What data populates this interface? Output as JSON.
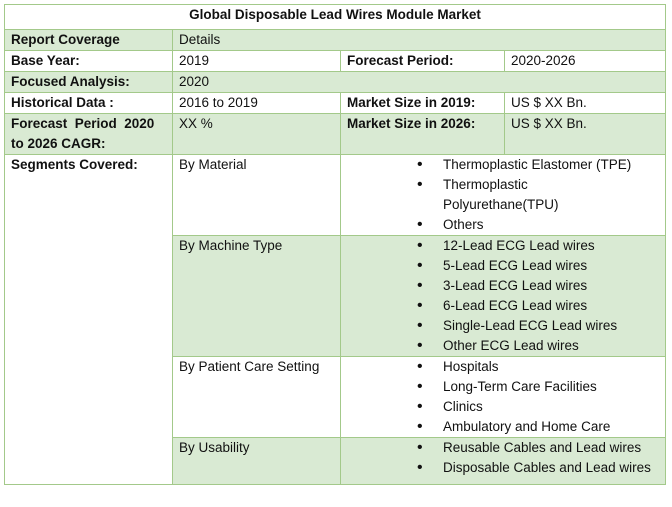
{
  "title": "Global Disposable Lead Wires Module Market",
  "header": {
    "label": "Report Coverage",
    "value": "Details"
  },
  "base_year": {
    "label": "Base Year:",
    "value": "2019"
  },
  "forecast_period": {
    "label": "Forecast Period:",
    "value": "2020-2026"
  },
  "focused_analysis": {
    "label": "Focused Analysis:",
    "value": "2020"
  },
  "historical_data": {
    "label": "Historical Data :",
    "value": "2016 to 2019"
  },
  "market_size_2019": {
    "label": "Market Size in 2019:",
    "value": "US $ XX Bn."
  },
  "cagr": {
    "label_line1": "Forecast  Period  2020",
    "label_line2": "to 2026 CAGR:",
    "value": "XX %"
  },
  "market_size_2026": {
    "label": "Market Size in 2026:",
    "value": "US $ XX Bn."
  },
  "segments": {
    "label": "Segments Covered:",
    "groups": [
      {
        "name": "By Material",
        "items": [
          "Thermoplastic Elastomer (TPE)",
          "Thermoplastic Polyurethane(TPU)",
          "Others"
        ]
      },
      {
        "name": "By Machine Type",
        "items": [
          "12-Lead ECG Lead wires",
          "5-Lead ECG Lead wires",
          "3-Lead ECG Lead wires",
          "6-Lead ECG Lead wires",
          "Single-Lead ECG Lead wires",
          "Other ECG Lead wires"
        ]
      },
      {
        "name": "By Patient Care Setting",
        "items": [
          "Hospitals",
          "Long-Term Care Facilities",
          "Clinics",
          "Ambulatory and Home Care"
        ]
      },
      {
        "name": "By Usability",
        "items": [
          "Reusable Cables and Lead wires",
          "Disposable Cables and Lead wires"
        ]
      }
    ]
  },
  "colors": {
    "row_fill": "#d9ead3",
    "border": "#a3c98a"
  }
}
